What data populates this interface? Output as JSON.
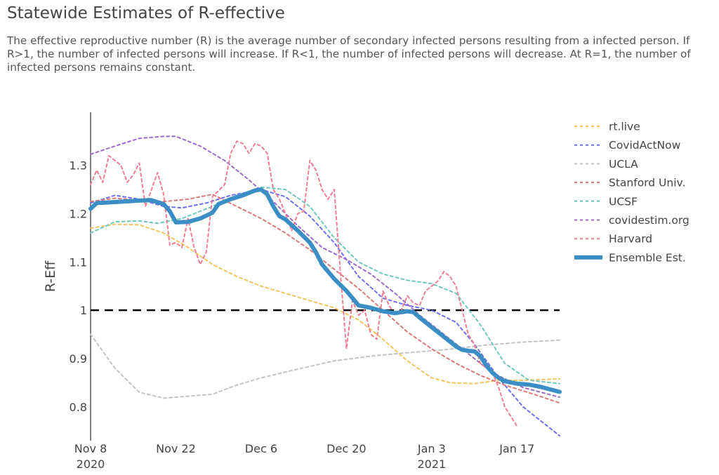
{
  "header": {
    "title": "Statewide Estimates of R-effective",
    "description": "The effective reproductive number (R) is the average number of secondary infected persons resulting from a infected person. If R>1, the number of infected persons will increase. If R<1, the number of infected persons will decrease. At R=1, the number of infected persons remains constant."
  },
  "chart_data": {
    "type": "line",
    "title": "",
    "xlabel": "",
    "ylabel": "R-Eff",
    "xlim": [
      "2020-11-08",
      "2021-01-24"
    ],
    "ylim": [
      0.73,
      1.41
    ],
    "x_ticks": [
      {
        "date": "2020-11-08",
        "label": "Nov 8",
        "sublabel": "2020"
      },
      {
        "date": "2020-11-22",
        "label": "Nov 22",
        "sublabel": ""
      },
      {
        "date": "2020-12-06",
        "label": "Dec 6",
        "sublabel": ""
      },
      {
        "date": "2020-12-20",
        "label": "Dec 20",
        "sublabel": ""
      },
      {
        "date": "2021-01-03",
        "label": "Jan 3",
        "sublabel": "2021"
      },
      {
        "date": "2021-01-17",
        "label": "Jan 17",
        "sublabel": ""
      }
    ],
    "y_ticks": [
      {
        "value": 0.8,
        "label": "0.8"
      },
      {
        "value": 0.9,
        "label": "0.9"
      },
      {
        "value": 1.0,
        "label": "1"
      },
      {
        "value": 1.1,
        "label": "1.1"
      },
      {
        "value": 1.2,
        "label": "1.2"
      },
      {
        "value": 1.3,
        "label": "1.3"
      }
    ],
    "reference_line": {
      "y": 1.0,
      "color": "#000000",
      "style": "dashed"
    },
    "grid": false,
    "legend_position": "right",
    "series": [
      {
        "name": "rt.live",
        "color": "#F4C55E",
        "dash": true,
        "width": 2,
        "points": [
          [
            "2020-11-08",
            1.17
          ],
          [
            "2020-11-12",
            1.178
          ],
          [
            "2020-11-16",
            1.177
          ],
          [
            "2020-11-20",
            1.16
          ],
          [
            "2020-11-24",
            1.13
          ],
          [
            "2020-11-28",
            1.095
          ],
          [
            "2020-12-02",
            1.07
          ],
          [
            "2020-12-06",
            1.05
          ],
          [
            "2020-12-10",
            1.035
          ],
          [
            "2020-12-14",
            1.02
          ],
          [
            "2020-12-18",
            1.005
          ],
          [
            "2020-12-22",
            0.98
          ],
          [
            "2020-12-26",
            0.94
          ],
          [
            "2020-12-30",
            0.895
          ],
          [
            "2021-01-03",
            0.86
          ],
          [
            "2021-01-06",
            0.85
          ],
          [
            "2021-01-10",
            0.848
          ],
          [
            "2021-01-14",
            0.855
          ],
          [
            "2021-01-18",
            0.855
          ],
          [
            "2021-01-24",
            0.858
          ]
        ]
      },
      {
        "name": "CovidActNow",
        "color": "#6E6EEE",
        "dash": true,
        "width": 2,
        "points": [
          [
            "2020-11-08",
            1.222
          ],
          [
            "2020-11-12",
            1.238
          ],
          [
            "2020-11-16",
            1.23
          ],
          [
            "2020-11-20",
            1.215
          ],
          [
            "2020-11-23",
            1.212
          ],
          [
            "2020-11-27",
            1.222
          ],
          [
            "2020-12-01",
            1.238
          ],
          [
            "2020-12-06",
            1.25
          ],
          [
            "2020-12-10",
            1.235
          ],
          [
            "2020-12-14",
            1.195
          ],
          [
            "2020-12-18",
            1.14
          ],
          [
            "2020-12-22",
            1.07
          ],
          [
            "2020-12-26",
            1.025
          ],
          [
            "2020-12-30",
            1.01
          ],
          [
            "2021-01-03",
            1.0
          ],
          [
            "2021-01-07",
            0.975
          ],
          [
            "2021-01-10",
            0.93
          ],
          [
            "2021-01-14",
            0.86
          ],
          [
            "2021-01-18",
            0.8
          ],
          [
            "2021-01-24",
            0.74
          ]
        ]
      },
      {
        "name": "UCLA",
        "color": "#C4C4C4",
        "dash": true,
        "width": 2,
        "points": [
          [
            "2020-11-08",
            0.95
          ],
          [
            "2020-11-12",
            0.88
          ],
          [
            "2020-11-16",
            0.83
          ],
          [
            "2020-11-20",
            0.818
          ],
          [
            "2020-11-24",
            0.822
          ],
          [
            "2020-11-28",
            0.826
          ],
          [
            "2020-12-02",
            0.845
          ],
          [
            "2020-12-06",
            0.86
          ],
          [
            "2020-12-12",
            0.878
          ],
          [
            "2020-12-18",
            0.895
          ],
          [
            "2020-12-24",
            0.905
          ],
          [
            "2020-12-30",
            0.912
          ],
          [
            "2021-01-05",
            0.918
          ],
          [
            "2021-01-12",
            0.928
          ],
          [
            "2021-01-18",
            0.934
          ],
          [
            "2021-01-24",
            0.938
          ]
        ]
      },
      {
        "name": "Stanford Univ.",
        "color": "#D97A7A",
        "dash": true,
        "width": 2,
        "points": [
          [
            "2020-11-08",
            1.225
          ],
          [
            "2020-11-12",
            1.232
          ],
          [
            "2020-11-16",
            1.228
          ],
          [
            "2020-11-20",
            1.225
          ],
          [
            "2020-11-24",
            1.23
          ],
          [
            "2020-11-28",
            1.24
          ],
          [
            "2020-12-02",
            1.215
          ],
          [
            "2020-12-06",
            1.19
          ],
          [
            "2020-12-10",
            1.16
          ],
          [
            "2020-12-14",
            1.125
          ],
          [
            "2020-12-18",
            1.085
          ],
          [
            "2020-12-22",
            1.045
          ],
          [
            "2020-12-26",
            1.0
          ],
          [
            "2020-12-30",
            0.955
          ],
          [
            "2021-01-03",
            0.92
          ],
          [
            "2021-01-07",
            0.89
          ],
          [
            "2021-01-11",
            0.865
          ],
          [
            "2021-01-15",
            0.845
          ],
          [
            "2021-01-20",
            0.825
          ],
          [
            "2021-01-24",
            0.808
          ]
        ]
      },
      {
        "name": "UCSF",
        "color": "#6FC8BE",
        "dash": true,
        "width": 2,
        "points": [
          [
            "2020-11-08",
            1.16
          ],
          [
            "2020-11-12",
            1.183
          ],
          [
            "2020-11-16",
            1.185
          ],
          [
            "2020-11-19",
            1.18
          ],
          [
            "2020-11-23",
            1.19
          ],
          [
            "2020-11-28",
            1.215
          ],
          [
            "2020-12-02",
            1.238
          ],
          [
            "2020-12-06",
            1.255
          ],
          [
            "2020-12-10",
            1.25
          ],
          [
            "2020-12-14",
            1.215
          ],
          [
            "2020-12-18",
            1.15
          ],
          [
            "2020-12-22",
            1.1
          ],
          [
            "2020-12-26",
            1.075
          ],
          [
            "2020-12-30",
            1.062
          ],
          [
            "2021-01-03",
            1.055
          ],
          [
            "2021-01-07",
            1.035
          ],
          [
            "2021-01-11",
            0.97
          ],
          [
            "2021-01-15",
            0.89
          ],
          [
            "2021-01-19",
            0.855
          ],
          [
            "2021-01-24",
            0.848
          ]
        ]
      },
      {
        "name": "covidestim.org",
        "color": "#9A6CC8",
        "dash": true,
        "width": 2,
        "points": [
          [
            "2020-11-08",
            1.323
          ],
          [
            "2020-11-12",
            1.34
          ],
          [
            "2020-11-16",
            1.356
          ],
          [
            "2020-11-20",
            1.36
          ],
          [
            "2020-11-22",
            1.36
          ],
          [
            "2020-11-26",
            1.34
          ],
          [
            "2020-11-30",
            1.31
          ],
          [
            "2020-12-04",
            1.27
          ],
          [
            "2020-12-08",
            1.225
          ],
          [
            "2020-12-12",
            1.175
          ],
          [
            "2020-12-16",
            1.13
          ],
          [
            "2020-12-20",
            1.105
          ],
          [
            "2020-12-24",
            1.075
          ],
          [
            "2020-12-28",
            1.035
          ],
          [
            "2021-01-01",
            0.99
          ],
          [
            "2021-01-05",
            0.95
          ],
          [
            "2021-01-09",
            0.91
          ],
          [
            "2021-01-13",
            0.87
          ],
          [
            "2021-01-18",
            0.84
          ],
          [
            "2021-01-24",
            0.82
          ]
        ]
      },
      {
        "name": "Harvard",
        "color": "#EF7E92",
        "dash": true,
        "width": 2,
        "points": [
          [
            "2020-11-08",
            1.26
          ],
          [
            "2020-11-09",
            1.29
          ],
          [
            "2020-11-10",
            1.265
          ],
          [
            "2020-11-11",
            1.32
          ],
          [
            "2020-11-13",
            1.3
          ],
          [
            "2020-11-14",
            1.265
          ],
          [
            "2020-11-15",
            1.28
          ],
          [
            "2020-11-16",
            1.305
          ],
          [
            "2020-11-17",
            1.215
          ],
          [
            "2020-11-18",
            1.25
          ],
          [
            "2020-11-19",
            1.285
          ],
          [
            "2020-11-20",
            1.24
          ],
          [
            "2020-11-21",
            1.135
          ],
          [
            "2020-11-22",
            1.14
          ],
          [
            "2020-11-23",
            1.13
          ],
          [
            "2020-11-24",
            1.19
          ],
          [
            "2020-11-25",
            1.13
          ],
          [
            "2020-11-26",
            1.095
          ],
          [
            "2020-11-27",
            1.12
          ],
          [
            "2020-11-28",
            1.235
          ],
          [
            "2020-11-30",
            1.26
          ],
          [
            "2020-12-01",
            1.325
          ],
          [
            "2020-12-02",
            1.35
          ],
          [
            "2020-12-03",
            1.345
          ],
          [
            "2020-12-04",
            1.325
          ],
          [
            "2020-12-05",
            1.345
          ],
          [
            "2020-12-06",
            1.34
          ],
          [
            "2020-12-07",
            1.325
          ],
          [
            "2020-12-08",
            1.25
          ],
          [
            "2020-12-09",
            1.23
          ],
          [
            "2020-12-10",
            1.2
          ],
          [
            "2020-12-11",
            1.165
          ],
          [
            "2020-12-12",
            1.2
          ],
          [
            "2020-12-13",
            1.205
          ],
          [
            "2020-12-14",
            1.31
          ],
          [
            "2020-12-15",
            1.29
          ],
          [
            "2020-12-16",
            1.25
          ],
          [
            "2020-12-17",
            1.23
          ],
          [
            "2020-12-18",
            1.25
          ],
          [
            "2020-12-19",
            1.08
          ],
          [
            "2020-12-20",
            0.92
          ],
          [
            "2020-12-21",
            1.02
          ],
          [
            "2020-12-22",
            0.99
          ],
          [
            "2020-12-23",
            1.0
          ],
          [
            "2020-12-24",
            0.95
          ],
          [
            "2020-12-25",
            0.94
          ],
          [
            "2020-12-26",
            1.04
          ],
          [
            "2020-12-27",
            1.01
          ],
          [
            "2020-12-28",
            0.99
          ],
          [
            "2020-12-29",
            1.0
          ],
          [
            "2020-12-30",
            1.03
          ],
          [
            "2020-12-31",
            1.015
          ],
          [
            "2021-01-01",
            1.01
          ],
          [
            "2021-01-02",
            1.04
          ],
          [
            "2021-01-03",
            1.05
          ],
          [
            "2021-01-04",
            1.06
          ],
          [
            "2021-01-05",
            1.08
          ],
          [
            "2021-01-06",
            1.07
          ],
          [
            "2021-01-07",
            1.05
          ],
          [
            "2021-01-08",
            1.0
          ],
          [
            "2021-01-09",
            0.95
          ],
          [
            "2021-01-10",
            0.93
          ],
          [
            "2021-01-11",
            0.89
          ],
          [
            "2021-01-12",
            0.88
          ],
          [
            "2021-01-13",
            0.87
          ],
          [
            "2021-01-14",
            0.84
          ],
          [
            "2021-01-15",
            0.8
          ],
          [
            "2021-01-16",
            0.78
          ],
          [
            "2021-01-17",
            0.76
          ]
        ]
      },
      {
        "name": "Ensemble Est.",
        "color": "#3A8EC4",
        "dash": false,
        "width": 6,
        "points": [
          [
            "2020-11-08",
            1.21
          ],
          [
            "2020-11-09",
            1.222
          ],
          [
            "2020-11-12",
            1.224
          ],
          [
            "2020-11-16",
            1.227
          ],
          [
            "2020-11-18",
            1.228
          ],
          [
            "2020-11-20",
            1.22
          ],
          [
            "2020-11-21",
            1.205
          ],
          [
            "2020-11-22",
            1.182
          ],
          [
            "2020-11-24",
            1.183
          ],
          [
            "2020-11-26",
            1.19
          ],
          [
            "2020-11-28",
            1.202
          ],
          [
            "2020-11-29",
            1.22
          ],
          [
            "2020-12-01",
            1.23
          ],
          [
            "2020-12-03",
            1.238
          ],
          [
            "2020-12-05",
            1.248
          ],
          [
            "2020-12-06",
            1.25
          ],
          [
            "2020-12-07",
            1.24
          ],
          [
            "2020-12-08",
            1.215
          ],
          [
            "2020-12-09",
            1.195
          ],
          [
            "2020-12-10",
            1.188
          ],
          [
            "2020-12-12",
            1.165
          ],
          [
            "2020-12-14",
            1.14
          ],
          [
            "2020-12-15",
            1.12
          ],
          [
            "2020-12-16",
            1.095
          ],
          [
            "2020-12-18",
            1.065
          ],
          [
            "2020-12-20",
            1.04
          ],
          [
            "2020-12-22",
            1.01
          ],
          [
            "2020-12-24",
            1.005
          ],
          [
            "2020-12-26",
            0.998
          ],
          [
            "2020-12-28",
            0.994
          ],
          [
            "2020-12-30",
            0.998
          ],
          [
            "2020-12-31",
            0.996
          ],
          [
            "2021-01-01",
            0.985
          ],
          [
            "2021-01-03",
            0.965
          ],
          [
            "2021-01-05",
            0.945
          ],
          [
            "2021-01-07",
            0.925
          ],
          [
            "2021-01-08",
            0.918
          ],
          [
            "2021-01-09",
            0.916
          ],
          [
            "2021-01-10",
            0.915
          ],
          [
            "2021-01-11",
            0.905
          ],
          [
            "2021-01-12",
            0.885
          ],
          [
            "2021-01-13",
            0.87
          ],
          [
            "2021-01-14",
            0.86
          ],
          [
            "2021-01-15",
            0.853
          ],
          [
            "2021-01-17",
            0.848
          ],
          [
            "2021-01-19",
            0.846
          ],
          [
            "2021-01-21",
            0.841
          ],
          [
            "2021-01-24",
            0.831
          ]
        ]
      }
    ]
  }
}
